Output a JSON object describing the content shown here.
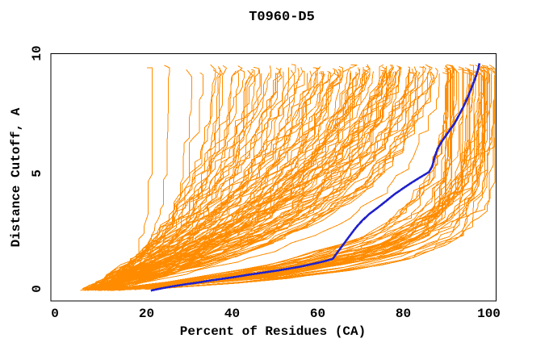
{
  "chart_data": {
    "type": "line",
    "title": "T0960-D5",
    "xlabel": "Percent of Residues (CA)",
    "ylabel": "Distance Cutoff, A",
    "xlim": [
      0,
      100
    ],
    "ylim": [
      0,
      10
    ],
    "grid": false,
    "legend_position": "none",
    "xaxis": {
      "tick_labels": [
        "0",
        "20",
        "40",
        "60",
        "80",
        "100"
      ],
      "major_ticks": [
        0,
        20,
        40,
        60,
        80,
        100
      ],
      "minor_ticks": [
        10,
        30,
        50,
        70,
        90
      ]
    },
    "yaxis": {
      "tick_labels": [
        "0",
        "5",
        "10"
      ],
      "major_ticks": [
        0,
        5,
        10
      ],
      "minor_ticks": [
        1,
        2,
        3,
        4,
        6,
        7,
        8,
        9
      ]
    },
    "highlight_series": {
      "name": "highlighted-model-curve",
      "color": "#2222CC",
      "stroke_width": 2.6,
      "points": [
        [
          21,
          0.08
        ],
        [
          23,
          0.16
        ],
        [
          26,
          0.26
        ],
        [
          29,
          0.35
        ],
        [
          32,
          0.43
        ],
        [
          35,
          0.52
        ],
        [
          38,
          0.6
        ],
        [
          41,
          0.68
        ],
        [
          44,
          0.77
        ],
        [
          47,
          0.85
        ],
        [
          50,
          0.93
        ],
        [
          53,
          1.02
        ],
        [
          56,
          1.12
        ],
        [
          58,
          1.2
        ],
        [
          60,
          1.28
        ],
        [
          62,
          1.37
        ],
        [
          63.5,
          1.45
        ],
        [
          64.5,
          1.7
        ],
        [
          65.5,
          1.95
        ],
        [
          66.5,
          2.2
        ],
        [
          67.5,
          2.45
        ],
        [
          68.5,
          2.7
        ],
        [
          69.5,
          2.92
        ],
        [
          70.5,
          3.12
        ],
        [
          72,
          3.38
        ],
        [
          74,
          3.66
        ],
        [
          76,
          3.95
        ],
        [
          78,
          4.25
        ],
        [
          80,
          4.5
        ],
        [
          82,
          4.75
        ],
        [
          84,
          4.98
        ],
        [
          86,
          5.2
        ],
        [
          86.8,
          5.45
        ],
        [
          87.2,
          5.78
        ],
        [
          88,
          6.2
        ],
        [
          89,
          6.52
        ],
        [
          90,
          6.78
        ],
        [
          91,
          7.05
        ],
        [
          92,
          7.3
        ],
        [
          93,
          7.65
        ],
        [
          94,
          8.0
        ],
        [
          95,
          8.4
        ],
        [
          96,
          8.85
        ],
        [
          97,
          9.35
        ],
        [
          97.6,
          9.7
        ],
        [
          97.8,
          9.9
        ]
      ]
    },
    "ensemble_series": {
      "name": "model-ensemble-curves",
      "color": "#FF8C00",
      "stroke_width": 1,
      "count": 150,
      "seed": 1337,
      "start_percent_range": [
        4,
        8
      ],
      "end_percent_range": [
        22,
        101
      ],
      "start_distance": 0.1,
      "max_distance_range": [
        9.45,
        9.85
      ]
    }
  },
  "colors": {
    "background": "#FFFFFF",
    "frame": "#000000",
    "text": "#000000",
    "ensemble": "#FF8C00",
    "highlight": "#2222CC"
  }
}
